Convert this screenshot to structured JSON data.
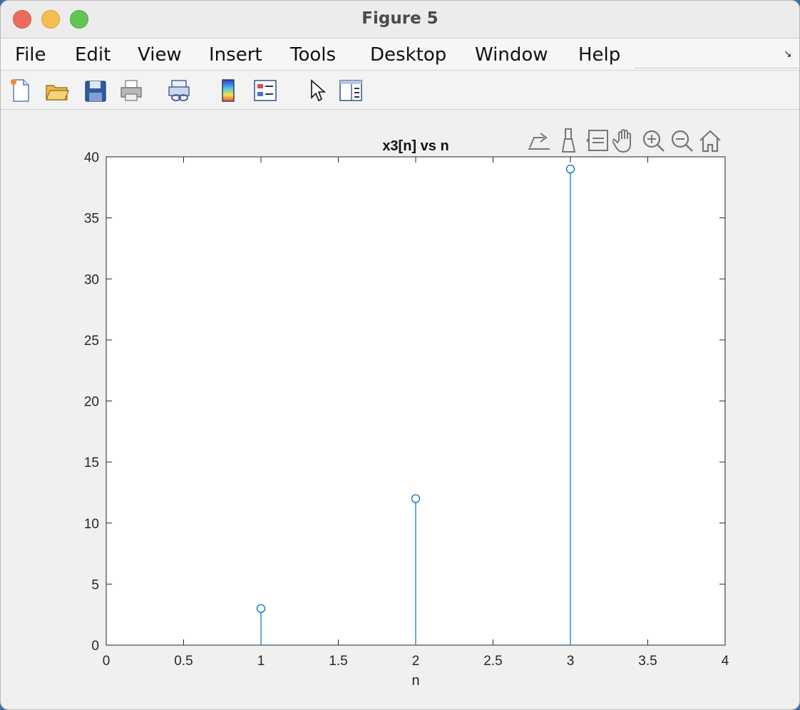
{
  "window": {
    "title": "Figure 5"
  },
  "menu": {
    "items": [
      {
        "id": "file",
        "label": "File"
      },
      {
        "id": "edit",
        "label": "Edit"
      },
      {
        "id": "view",
        "label": "View"
      },
      {
        "id": "insert",
        "label": "Insert"
      },
      {
        "id": "tools",
        "label": "Tools"
      },
      {
        "id": "desktop",
        "label": "Desktop"
      },
      {
        "id": "window",
        "label": "Window"
      },
      {
        "id": "help",
        "label": "Help"
      }
    ]
  },
  "toolbar": {
    "buttons": [
      {
        "id": "new-figure",
        "icon": "new-figure-icon"
      },
      {
        "id": "open-file",
        "icon": "folder-open-icon"
      },
      {
        "id": "save-figure",
        "icon": "floppy-disk-icon"
      },
      {
        "id": "print-figure",
        "icon": "printer-icon"
      },
      {
        "id": "link-plot",
        "icon": "link-plot-icon"
      },
      {
        "id": "insert-colorbar",
        "icon": "colorbar-icon"
      },
      {
        "id": "insert-legend",
        "icon": "legend-icon"
      },
      {
        "id": "edit-plot",
        "icon": "arrow-cursor-icon"
      },
      {
        "id": "property-inspector",
        "icon": "property-inspector-icon"
      }
    ]
  },
  "axes_toolbar": {
    "buttons": [
      {
        "id": "export",
        "icon": "export-icon"
      },
      {
        "id": "brush",
        "icon": "brush-icon"
      },
      {
        "id": "data-tips",
        "icon": "data-tip-icon"
      },
      {
        "id": "pan",
        "icon": "hand-pan-icon"
      },
      {
        "id": "zoom-in",
        "icon": "zoom-in-icon"
      },
      {
        "id": "zoom-out",
        "icon": "zoom-out-icon"
      },
      {
        "id": "restore-view",
        "icon": "home-icon"
      }
    ]
  },
  "chart_data": {
    "type": "stem",
    "title": "x3[n] vs n",
    "xlabel": "n",
    "ylabel": "",
    "xlim": [
      0,
      4
    ],
    "ylim": [
      0,
      40
    ],
    "xticks": [
      0,
      0.5,
      1,
      1.5,
      2,
      2.5,
      3,
      3.5,
      4
    ],
    "xtick_labels": [
      "0",
      "0.5",
      "1",
      "1.5",
      "2",
      "2.5",
      "3",
      "3.5",
      "4"
    ],
    "yticks": [
      0,
      5,
      10,
      15,
      20,
      25,
      30,
      35,
      40
    ],
    "ytick_labels": [
      "0",
      "5",
      "10",
      "15",
      "20",
      "25",
      "30",
      "35",
      "40"
    ],
    "grid": false,
    "series": [
      {
        "x": [
          1,
          2,
          3
        ],
        "y": [
          3,
          12,
          39
        ],
        "color": "#0072bd",
        "marker": "circle"
      }
    ]
  }
}
